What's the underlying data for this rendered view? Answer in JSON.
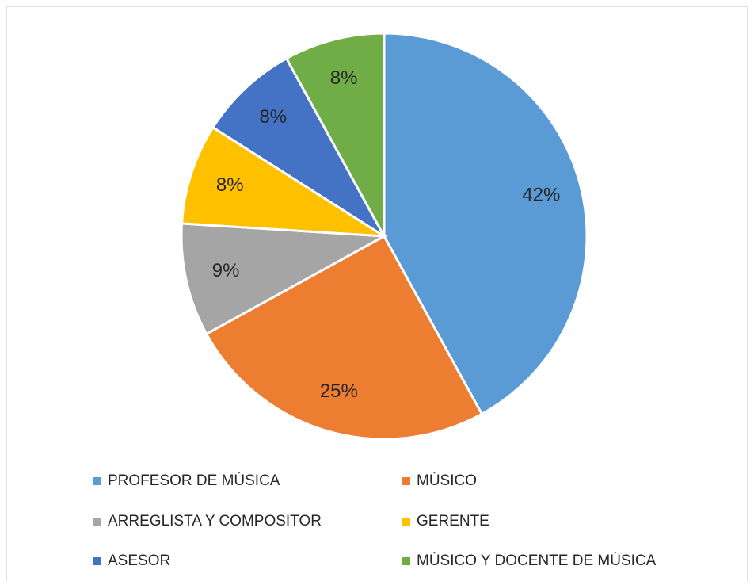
{
  "chart_data": {
    "type": "pie",
    "categories": [
      "PROFESOR DE MÚSICA",
      "MÚSICO",
      "ARREGLISTA Y COMPOSITOR",
      "GERENTE",
      "ASESOR",
      "MÚSICO Y DOCENTE DE MÚSICA"
    ],
    "values": [
      42,
      25,
      9,
      8,
      8,
      8
    ],
    "value_labels": [
      "42%",
      "25%",
      "9%",
      "8%",
      "8%",
      "8%"
    ],
    "colors": [
      "#5b9bd5",
      "#ed7d31",
      "#a5a5a5",
      "#ffc000",
      "#4472c4",
      "#70ad47"
    ],
    "legend": "bottom"
  }
}
